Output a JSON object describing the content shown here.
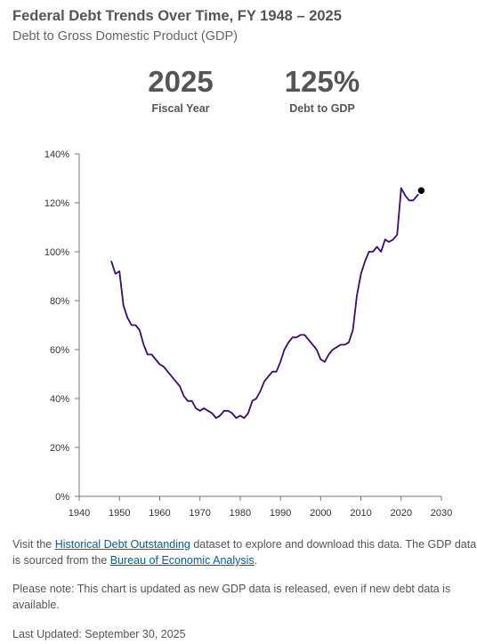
{
  "header": {
    "title": "Federal Debt Trends Over Time, FY 1948 – 2025",
    "subtitle": "Debt to Gross Domestic Product (GDP)"
  },
  "stats": {
    "year_value": "2025",
    "year_label": "Fiscal Year",
    "debt_value": "125%",
    "debt_label": "Debt to GDP"
  },
  "footer": {
    "visit_prefix": "Visit the ",
    "dataset_link": "Historical Debt Outstanding",
    "visit_middle": " dataset to explore and download this data. The GDP data is sourced from the ",
    "bea_link": "Bureau of Economic Analysis",
    "visit_suffix": ".",
    "note": "Please note: This chart is updated as new GDP data is released, even if new debt data is available.",
    "last_updated": "Last Updated: September 30, 2025"
  },
  "colors": {
    "line": "#3d0a6e",
    "highlight_point": "#000000",
    "axis": "#777777"
  },
  "chart_data": {
    "type": "line",
    "title": "",
    "xlabel": "",
    "ylabel": "",
    "xlim": [
      1940,
      2030
    ],
    "ylim": [
      0,
      140
    ],
    "x_ticks": [
      1940,
      1950,
      1960,
      1970,
      1980,
      1990,
      2000,
      2010,
      2020,
      2030
    ],
    "x_tick_labels": [
      "1940",
      "1950",
      "1960",
      "1970",
      "1980",
      "1990",
      "2000",
      "2010",
      "2020",
      "2030"
    ],
    "y_ticks": [
      0,
      20,
      40,
      60,
      80,
      100,
      120,
      140
    ],
    "y_tick_labels": [
      "0%",
      "20%",
      "40%",
      "60%",
      "80%",
      "100%",
      "120%",
      "140%"
    ],
    "grid": false,
    "highlight": {
      "x": 2025,
      "y": 125
    },
    "series": [
      {
        "x": [
          1948,
          1949,
          1950,
          1951,
          1952,
          1953,
          1954,
          1955,
          1956,
          1957,
          1958,
          1959,
          1960,
          1961,
          1962,
          1963,
          1964,
          1965,
          1966,
          1967,
          1968,
          1969,
          1970,
          1971,
          1972,
          1973,
          1974,
          1975,
          1976,
          1977,
          1978,
          1979,
          1980,
          1981,
          1982,
          1983,
          1984,
          1985,
          1986,
          1987,
          1988,
          1989,
          1990,
          1991,
          1992,
          1993,
          1994,
          1995,
          1996,
          1997,
          1998,
          1999,
          2000,
          2001,
          2002,
          2003,
          2004,
          2005,
          2006,
          2007,
          2008,
          2009,
          2010,
          2011,
          2012,
          2013,
          2014,
          2015,
          2016,
          2017,
          2018,
          2019,
          2020,
          2021,
          2022,
          2023,
          2024,
          2025
        ],
        "y": [
          96,
          91,
          92,
          78,
          73,
          70,
          70,
          68,
          62,
          58,
          58,
          56,
          54,
          53,
          51,
          49,
          47,
          45,
          41,
          39,
          39,
          36,
          35,
          36,
          35,
          34,
          32,
          33,
          35,
          35,
          34,
          32,
          33,
          32,
          34,
          39,
          40,
          43,
          47,
          49,
          51,
          51,
          55,
          60,
          63,
          65,
          65,
          66,
          66,
          64,
          62,
          60,
          56,
          55,
          58,
          60,
          61,
          62,
          62,
          63,
          68,
          82,
          91,
          96,
          100,
          100,
          102,
          100,
          105,
          104,
          105,
          107,
          126,
          123,
          121,
          121,
          123,
          125
        ]
      }
    ]
  }
}
